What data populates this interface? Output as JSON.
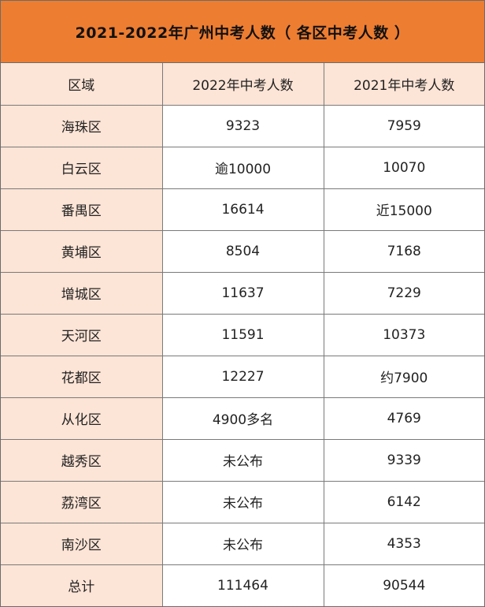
{
  "title": "2021-2022年广州中考人数（ 各区中考人数 ）",
  "headers": [
    "区域",
    "2022年中考人数",
    "2021年中考人数"
  ],
  "rows": [
    [
      "海珠区",
      "9323",
      "7959"
    ],
    [
      "白云区",
      "逾10000",
      "10070"
    ],
    [
      "番禺区",
      "16614",
      "近15000"
    ],
    [
      "黄埔区",
      "8504",
      "7168"
    ],
    [
      "增城区",
      "11637",
      "7229"
    ],
    [
      "天河区",
      "11591",
      "10373"
    ],
    [
      "花都区",
      "12227",
      "约7900"
    ],
    [
      "从化区",
      "4900多名",
      "4769"
    ],
    [
      "越秀区",
      "未公布",
      "9339"
    ],
    [
      "荔湾区",
      "未公布",
      "6142"
    ],
    [
      "南沙区",
      "未公布",
      "4353"
    ],
    [
      "总计",
      "111464",
      "90544"
    ]
  ],
  "colors": {
    "title_bg": "#ed7d31",
    "label_bg": "#fce4d6",
    "cell_bg": "#ffffff",
    "border": "#7a7a7a"
  }
}
